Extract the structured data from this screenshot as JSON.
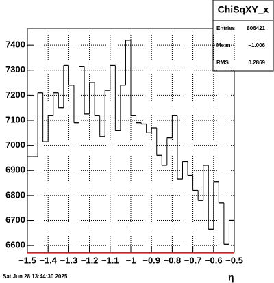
{
  "chart_data": {
    "type": "histogram",
    "title": "ChiSqXY_x",
    "xlabel": "η",
    "bins": [
      -1.5,
      -1.475,
      -1.45,
      -1.425,
      -1.4,
      -1.375,
      -1.35,
      -1.325,
      -1.3,
      -1.275,
      -1.25,
      -1.225,
      -1.2,
      -1.175,
      -1.15,
      -1.125,
      -1.1,
      -1.075,
      -1.05,
      -1.025,
      -1.0,
      -0.975,
      -0.95,
      -0.925,
      -0.9,
      -0.875,
      -0.85,
      -0.825,
      -0.8,
      -0.775,
      -0.75,
      -0.725,
      -0.7,
      -0.675,
      -0.65,
      -0.625,
      -0.6,
      -0.575,
      -0.55,
      -0.525,
      -0.5
    ],
    "values": [
      6955,
      6955,
      7210,
      7015,
      7120,
      7210,
      7150,
      7320,
      7240,
      7090,
      7315,
      7125,
      7250,
      7120,
      7035,
      7220,
      7320,
      7060,
      7240,
      7420,
      7120,
      7090,
      7085,
      7050,
      7070,
      6960,
      6920,
      7030,
      7120,
      6865,
      6935,
      6880,
      6820,
      6780,
      6920,
      6665,
      6855,
      6770,
      6605,
      6700
    ],
    "color": "#000000",
    "xlim": [
      -1.5,
      -0.5
    ],
    "ylim": [
      6573,
      7466
    ],
    "xticks": [
      {
        "value": -1.5,
        "label": "−1.5"
      },
      {
        "value": -1.4,
        "label": "−1.4"
      },
      {
        "value": -1.3,
        "label": "−1.3"
      },
      {
        "value": -1.2,
        "label": "−1.2"
      },
      {
        "value": -1.1,
        "label": "−1.1"
      },
      {
        "value": -1,
        "label": "−1"
      },
      {
        "value": -0.9,
        "label": "−0.9"
      },
      {
        "value": -0.8,
        "label": "−0.8"
      },
      {
        "value": -0.7,
        "label": "−0.7"
      },
      {
        "value": -0.6,
        "label": "−0.6"
      },
      {
        "value": -0.5,
        "label": "−0.5"
      }
    ],
    "yticks": [
      6600,
      6700,
      6800,
      6900,
      7000,
      7100,
      7200,
      7300,
      7400
    ],
    "grid": true,
    "stats": [
      [
        "Entries",
        "806421"
      ],
      [
        "Mean",
        "−1.006"
      ],
      [
        "RMS",
        "0.2869"
      ]
    ],
    "footer": "Sat Jun 28 13:44:30 2025"
  }
}
